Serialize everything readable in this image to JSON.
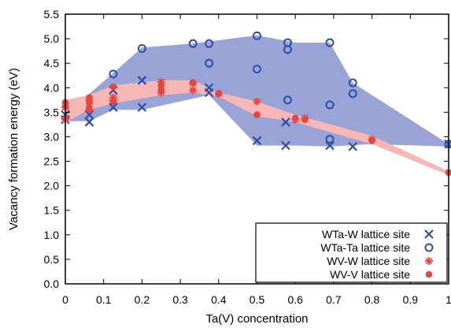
{
  "chart_data": {
    "type": "scatter",
    "title": "",
    "xlabel": "Ta(V) concentration",
    "ylabel": "Vacancy formation energy (eV)",
    "xlim": [
      0,
      1
    ],
    "ylim": [
      0,
      5.5
    ],
    "x_ticks": [
      "0",
      "0.1",
      "0.2",
      "0.3",
      "0.4",
      "0.5",
      "0.6",
      "0.7",
      "0.8",
      "0.9",
      "1"
    ],
    "y_ticks": [
      "0.0",
      "0.5",
      "1.0",
      "1.5",
      "2.0",
      "2.5",
      "3.0",
      "3.5",
      "4.0",
      "4.5",
      "5.0",
      "5.5"
    ],
    "grid": false,
    "legend_position": "bottom-right",
    "colors": {
      "blue_marker": "#2b4fa8",
      "blue_band": "#9aa3d6",
      "red_marker": "#e8453c",
      "red_band": "#f6b7b5"
    },
    "bands": [
      {
        "color": "blue_band",
        "upper": [
          [
            0,
            3.45
          ],
          [
            0.125,
            4.3
          ],
          [
            0.2,
            4.82
          ],
          [
            0.333,
            4.9
          ],
          [
            0.5,
            5.07
          ],
          [
            0.6,
            4.92
          ],
          [
            0.69,
            4.92
          ],
          [
            0.75,
            4.1
          ],
          [
            1.0,
            2.85
          ]
        ],
        "lower": [
          [
            1.0,
            2.8
          ],
          [
            0.8,
            2.85
          ],
          [
            0.69,
            2.8
          ],
          [
            0.6,
            2.82
          ],
          [
            0.5,
            2.82
          ],
          [
            0.375,
            3.85
          ],
          [
            0.2,
            3.55
          ],
          [
            0.125,
            3.55
          ],
          [
            0.0625,
            3.32
          ],
          [
            0,
            3.32
          ]
        ]
      },
      {
        "color": "red_band",
        "upper": [
          [
            0,
            3.75
          ],
          [
            0.0625,
            3.85
          ],
          [
            0.125,
            4.05
          ],
          [
            0.25,
            4.15
          ],
          [
            0.333,
            4.15
          ],
          [
            0.4,
            3.9
          ],
          [
            0.5,
            3.72
          ],
          [
            0.6,
            3.45
          ],
          [
            0.8,
            3.02
          ],
          [
            1.0,
            2.3
          ]
        ],
        "lower": [
          [
            1.0,
            2.22
          ],
          [
            0.8,
            2.85
          ],
          [
            0.6,
            3.3
          ],
          [
            0.5,
            3.42
          ],
          [
            0.4,
            3.82
          ],
          [
            0.333,
            3.9
          ],
          [
            0.25,
            3.85
          ],
          [
            0.125,
            3.68
          ],
          [
            0.0625,
            3.55
          ],
          [
            0,
            3.3
          ]
        ]
      }
    ],
    "series": [
      {
        "name": "WTa-W lattice site",
        "marker": "x",
        "color": "blue_marker",
        "points": [
          [
            0,
            3.35
          ],
          [
            0,
            3.45
          ],
          [
            0.0625,
            3.3
          ],
          [
            0.0625,
            3.45
          ],
          [
            0.125,
            3.6
          ],
          [
            0.125,
            3.95
          ],
          [
            0.2,
            3.6
          ],
          [
            0.2,
            4.15
          ],
          [
            0.375,
            3.9
          ],
          [
            0.375,
            4.0
          ],
          [
            0.5,
            2.92
          ],
          [
            0.575,
            2.82
          ],
          [
            0.575,
            3.3
          ],
          [
            0.69,
            2.82
          ],
          [
            0.75,
            2.8
          ],
          [
            1.0,
            2.85
          ]
        ]
      },
      {
        "name": "WTa-Ta lattice site",
        "marker": "o",
        "color": "blue_marker",
        "points": [
          [
            0.125,
            4.28
          ],
          [
            0.2,
            4.8
          ],
          [
            0.333,
            4.9
          ],
          [
            0.375,
            4.9
          ],
          [
            0.375,
            4.5
          ],
          [
            0.5,
            5.06
          ],
          [
            0.5,
            4.38
          ],
          [
            0.58,
            4.92
          ],
          [
            0.58,
            4.78
          ],
          [
            0.58,
            3.75
          ],
          [
            0.69,
            4.92
          ],
          [
            0.69,
            3.65
          ],
          [
            0.69,
            2.95
          ],
          [
            0.75,
            4.1
          ],
          [
            0.75,
            3.88
          ],
          [
            1.0,
            2.85
          ]
        ]
      },
      {
        "name": "WV-W lattice site",
        "marker": "*",
        "color": "red_marker",
        "points": [
          [
            0,
            3.35
          ],
          [
            0,
            3.6
          ],
          [
            0.0625,
            3.55
          ],
          [
            0.0625,
            3.75
          ],
          [
            0.125,
            3.75
          ],
          [
            0.125,
            3.8
          ],
          [
            0.25,
            3.9
          ],
          [
            0.25,
            4.12
          ],
          [
            0.333,
            3.95
          ],
          [
            0.333,
            4.1
          ],
          [
            0.4,
            3.88
          ],
          [
            0.5,
            3.72
          ],
          [
            0.6,
            3.35
          ],
          [
            0.625,
            3.38
          ],
          [
            0.8,
            2.95
          ]
        ]
      },
      {
        "name": "WV-V lattice site",
        "marker": "dot",
        "color": "red_marker",
        "points": [
          [
            0,
            3.38
          ],
          [
            0,
            3.62
          ],
          [
            0,
            3.7
          ],
          [
            0.0625,
            3.6
          ],
          [
            0.0625,
            3.7
          ],
          [
            0.0625,
            3.8
          ],
          [
            0.125,
            3.72
          ],
          [
            0.125,
            4.02
          ],
          [
            0.25,
            3.95
          ],
          [
            0.25,
            4.05
          ],
          [
            0.333,
            4.1
          ],
          [
            0.4,
            3.88
          ],
          [
            0.5,
            3.45
          ],
          [
            0.6,
            3.38
          ],
          [
            0.625,
            3.35
          ],
          [
            0.8,
            2.92
          ],
          [
            1.0,
            2.27
          ]
        ]
      }
    ]
  }
}
